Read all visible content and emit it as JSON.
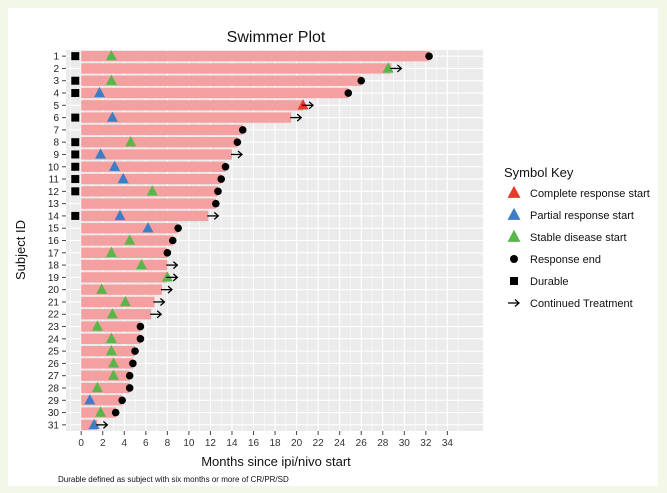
{
  "chart_data": {
    "type": "bar",
    "title": "Swimmer Plot",
    "xlabel": "Months since ipi/nivo start",
    "ylabel": "Subject ID",
    "xlim": [
      -1,
      35
    ],
    "xticks": [
      0,
      2,
      4,
      6,
      8,
      10,
      12,
      14,
      16,
      18,
      20,
      22,
      24,
      26,
      28,
      30,
      32,
      34
    ],
    "grid": true,
    "legend_position": "right",
    "footnote": "Durable defined as subject with six months or more of CR/PR/SD",
    "bar_color": "#f4a0a0",
    "subjects": [
      {
        "id": "1",
        "duration": 32.3,
        "durable": true,
        "response": {
          "type": "stable",
          "at": 2.8
        },
        "end": 32.3
      },
      {
        "id": "2",
        "duration": 28.8,
        "durable": false,
        "response": {
          "type": "stable",
          "at": 28.5
        },
        "arrow": true
      },
      {
        "id": "3",
        "duration": 26.0,
        "durable": true,
        "response": {
          "type": "stable",
          "at": 2.8
        },
        "end": 26.0
      },
      {
        "id": "4",
        "duration": 24.8,
        "durable": true,
        "response": {
          "type": "partial",
          "at": 1.7
        },
        "end": 24.8
      },
      {
        "id": "5",
        "duration": 20.6,
        "durable": false,
        "response": {
          "type": "complete",
          "at": 20.6
        },
        "arrow": true
      },
      {
        "id": "6",
        "duration": 19.5,
        "durable": true,
        "response": {
          "type": "partial",
          "at": 2.9
        },
        "arrow": true
      },
      {
        "id": "7",
        "duration": 15.0,
        "durable": false,
        "end": 15.0
      },
      {
        "id": "8",
        "duration": 14.5,
        "durable": true,
        "response": {
          "type": "stable",
          "at": 4.6
        },
        "end": 14.5
      },
      {
        "id": "9",
        "duration": 14.0,
        "durable": true,
        "response": {
          "type": "partial",
          "at": 1.8
        },
        "arrow": true
      },
      {
        "id": "10",
        "duration": 13.4,
        "durable": true,
        "response": {
          "type": "partial",
          "at": 3.1
        },
        "end": 13.4
      },
      {
        "id": "11",
        "duration": 13.0,
        "durable": true,
        "response": {
          "type": "partial",
          "at": 3.9
        },
        "end": 13.0
      },
      {
        "id": "12",
        "duration": 12.7,
        "durable": true,
        "response": {
          "type": "stable",
          "at": 6.6
        },
        "end": 12.7
      },
      {
        "id": "13",
        "duration": 12.5,
        "durable": false,
        "end": 12.5
      },
      {
        "id": "14",
        "duration": 11.8,
        "durable": true,
        "response": {
          "type": "partial",
          "at": 3.6
        },
        "arrow": true
      },
      {
        "id": "15",
        "duration": 9.0,
        "durable": false,
        "response": {
          "type": "partial",
          "at": 6.2
        },
        "end": 9.0
      },
      {
        "id": "16",
        "duration": 8.5,
        "durable": false,
        "response": {
          "type": "stable",
          "at": 4.5
        },
        "end": 8.5
      },
      {
        "id": "17",
        "duration": 8.0,
        "durable": false,
        "response": {
          "type": "stable",
          "at": 2.8
        },
        "end": 8.0
      },
      {
        "id": "18",
        "duration": 8.0,
        "durable": false,
        "response": {
          "type": "stable",
          "at": 5.6
        },
        "arrow": true
      },
      {
        "id": "19",
        "duration": 8.0,
        "durable": false,
        "response": {
          "type": "stable",
          "at": 8.0
        },
        "arrow": true
      },
      {
        "id": "20",
        "duration": 7.5,
        "durable": false,
        "response": {
          "type": "stable",
          "at": 1.9
        },
        "arrow": true
      },
      {
        "id": "21",
        "duration": 6.8,
        "durable": false,
        "response": {
          "type": "stable",
          "at": 4.1
        },
        "arrow": true
      },
      {
        "id": "22",
        "duration": 6.5,
        "durable": false,
        "response": {
          "type": "stable",
          "at": 2.9
        },
        "arrow": true
      },
      {
        "id": "23",
        "duration": 5.5,
        "durable": false,
        "response": {
          "type": "stable",
          "at": 1.5
        },
        "end": 5.5
      },
      {
        "id": "24",
        "duration": 5.5,
        "durable": false,
        "response": {
          "type": "stable",
          "at": 2.8
        },
        "end": 5.5
      },
      {
        "id": "25",
        "duration": 5.0,
        "durable": false,
        "response": {
          "type": "stable",
          "at": 2.8
        },
        "end": 5.0
      },
      {
        "id": "26",
        "duration": 4.8,
        "durable": false,
        "response": {
          "type": "stable",
          "at": 3.0
        },
        "end": 4.8
      },
      {
        "id": "27",
        "duration": 4.5,
        "durable": false,
        "response": {
          "type": "stable",
          "at": 3.0
        },
        "end": 4.5
      },
      {
        "id": "28",
        "duration": 4.5,
        "durable": false,
        "response": {
          "type": "stable",
          "at": 1.5
        },
        "end": 4.5
      },
      {
        "id": "29",
        "duration": 3.8,
        "durable": false,
        "response": {
          "type": "partial",
          "at": 0.8
        },
        "end": 3.8
      },
      {
        "id": "30",
        "duration": 3.2,
        "durable": false,
        "response": {
          "type": "stable",
          "at": 1.8
        },
        "end": 3.2
      },
      {
        "id": "31",
        "duration": 1.5,
        "durable": false,
        "response": {
          "type": "partial",
          "at": 1.2
        },
        "arrow": true
      }
    ],
    "legend": {
      "title": "Symbol Key",
      "items": [
        {
          "key": "complete",
          "label": "Complete response start",
          "shape": "triangle",
          "color": "#e8392b"
        },
        {
          "key": "partial",
          "label": "Partial response start",
          "shape": "triangle",
          "color": "#3d7dc4"
        },
        {
          "key": "stable",
          "label": "Stable disease start",
          "shape": "triangle",
          "color": "#5ab54a"
        },
        {
          "key": "end",
          "label": "Response end",
          "shape": "circle",
          "color": "#000000"
        },
        {
          "key": "durable",
          "label": "Durable",
          "shape": "square",
          "color": "#000000"
        },
        {
          "key": "arrow",
          "label": "Continued Treatment",
          "shape": "arrow",
          "color": "#000000"
        }
      ]
    }
  }
}
